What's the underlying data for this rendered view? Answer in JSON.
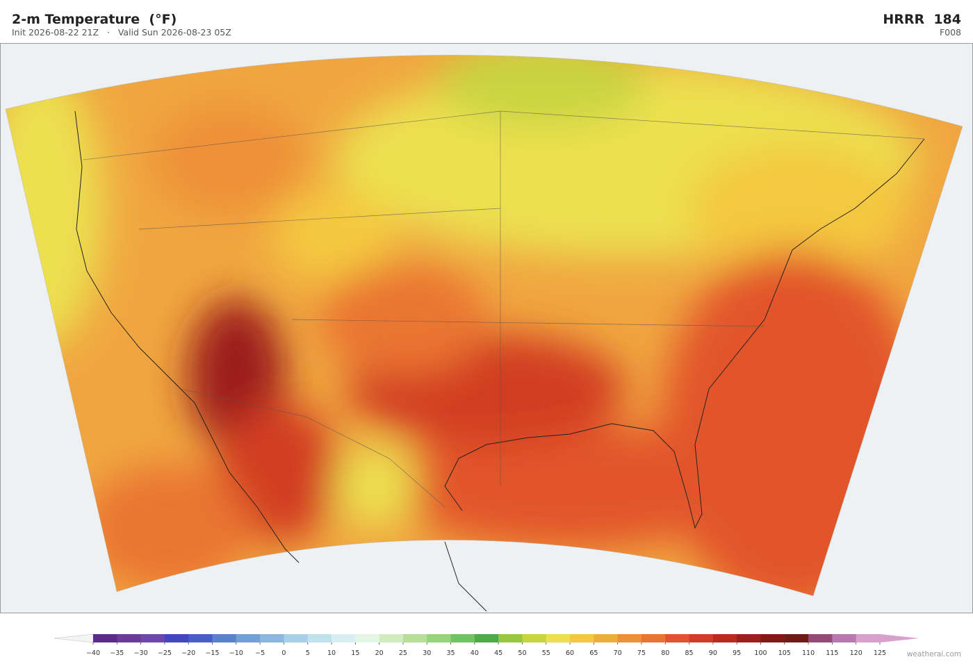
{
  "header": {
    "title": "2-m Temperature  (°F)",
    "subtitle": "Init 2026-08-22 21Z   ·   Valid Sun 2026-08-23 05Z",
    "model": "HRRR  184",
    "forecast_hour": "F008"
  },
  "colorbar": {
    "ticks": [
      {
        "value": -40,
        "label": "−40"
      },
      {
        "value": -35,
        "label": "−35"
      },
      {
        "value": -30,
        "label": "−30"
      },
      {
        "value": -25,
        "label": "−25"
      },
      {
        "value": -20,
        "label": "−20"
      },
      {
        "value": -15,
        "label": "−15"
      },
      {
        "value": -10,
        "label": "−10"
      },
      {
        "value": -5,
        "label": "−5"
      },
      0,
      5,
      10,
      15,
      20,
      25,
      30,
      35,
      40,
      45,
      50,
      55,
      60,
      65,
      70,
      75,
      80,
      85,
      90,
      95,
      100,
      105,
      110,
      115,
      120,
      125
    ],
    "colors": [
      "#5a2a8e",
      "#6a3a9e",
      "#6e46b0",
      "#4446c0",
      "#4a5ec8",
      "#5a82d0",
      "#74a0da",
      "#8cb8e0",
      "#a8d0e8",
      "#c0e2ee",
      "#d8eef2",
      "#e6f6e6",
      "#d2ecc0",
      "#b6e09a",
      "#96d474",
      "#72c45c",
      "#4aae48",
      "#98c840",
      "#c8d440",
      "#ece050",
      "#f4c840",
      "#f2ac3c",
      "#ee9038",
      "#ea7432",
      "#e2542a",
      "#d23e24",
      "#ba2a20",
      "#9c1e1e",
      "#861818",
      "#741818",
      "#9a4878",
      "#b878b0",
      "#d8a0cc"
    ],
    "under_color": "#f4f4f4",
    "over_color": "#d8a0cc"
  },
  "footer": {
    "credit": "weatherai.com"
  }
}
